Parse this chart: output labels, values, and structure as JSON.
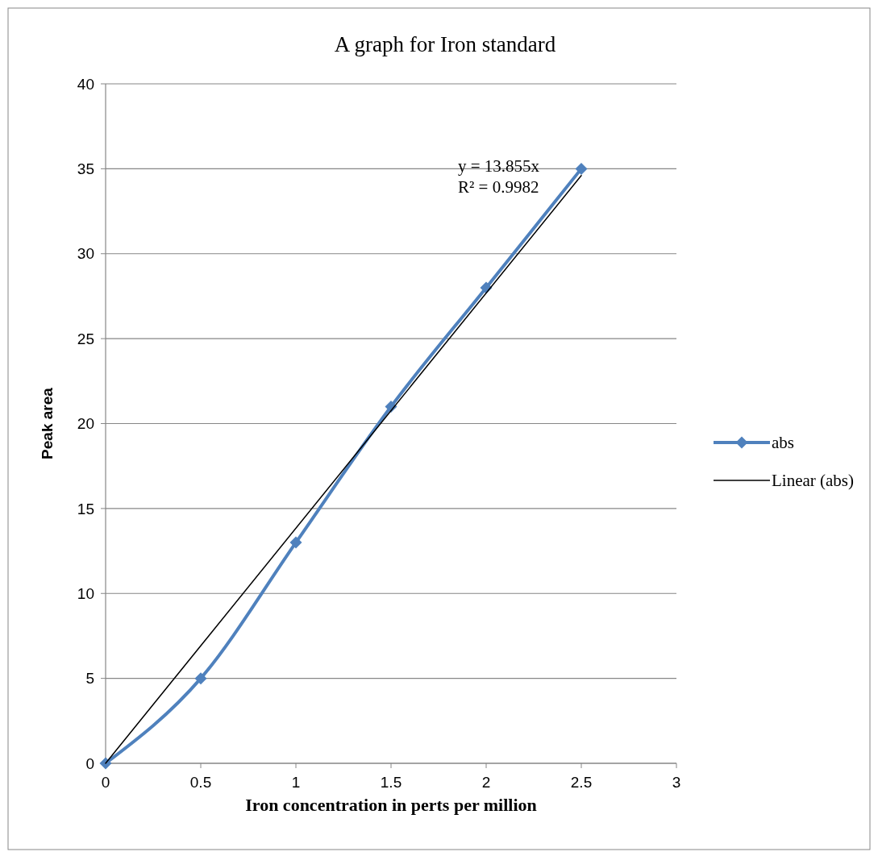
{
  "chart_data": {
    "type": "line",
    "title": "A graph for Iron standard",
    "xlabel": "Iron concentration in perts per million",
    "ylabel": "Peak area",
    "x": [
      0,
      0.5,
      1,
      1.5,
      2,
      2.5
    ],
    "series": [
      {
        "name": "abs",
        "color": "#4f81bd",
        "values": [
          0,
          5,
          13,
          21,
          28,
          35
        ],
        "marker": "diamond"
      },
      {
        "name": "Linear (abs)",
        "color": "#000000",
        "x": [
          0,
          2.5
        ],
        "values": [
          0,
          34.6
        ],
        "marker": "none"
      }
    ],
    "xlim": [
      0,
      3
    ],
    "xticks": [
      0,
      0.5,
      1,
      1.5,
      2,
      2.5,
      3
    ],
    "ylim": [
      0,
      40
    ],
    "yticks": [
      0,
      5,
      10,
      15,
      20,
      25,
      30,
      35,
      40
    ],
    "grid": "y",
    "legend": "right",
    "annotations": [
      "y = 13.855x",
      "R² = 0.9982"
    ]
  }
}
